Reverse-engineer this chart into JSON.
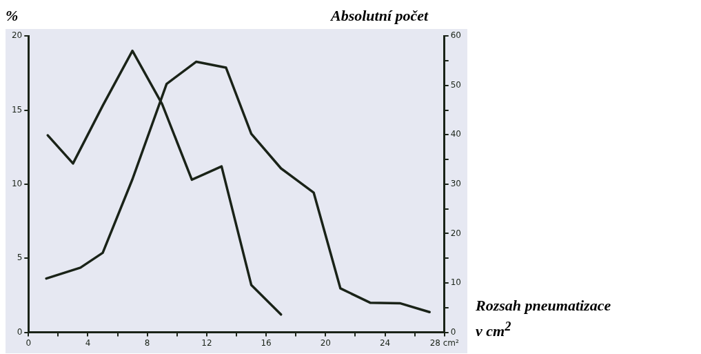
{
  "chart_data": {
    "type": "line",
    "ylabel": "%",
    "y2label": "Absolutní počet",
    "xlabel": "Rozsah pneumatizace v cm$^{2}$",
    "xlim": [
      0,
      28
    ],
    "xticks": [
      0,
      {
        "value": 2,
        "label": null
      },
      4,
      {
        "value": 6,
        "label": null
      },
      8,
      {
        "value": 10,
        "label": null
      },
      12,
      {
        "value": 14,
        "label": null
      },
      16,
      {
        "value": 18,
        "label": null
      },
      20,
      {
        "value": 22,
        "label": null
      },
      24,
      {
        "value": 26,
        "label": null
      },
      {
        "value": 28,
        "label": "28 cm²"
      }
    ],
    "ylim": [
      0,
      20
    ],
    "yticks": [
      0,
      5,
      10,
      15,
      20
    ],
    "y2lim": [
      0,
      60
    ],
    "y2ticks": [
      0,
      {
        "value": 5,
        "label": null
      },
      10,
      {
        "value": 15,
        "label": null
      },
      20,
      {
        "value": 25,
        "label": null
      },
      30,
      {
        "value": 35,
        "label": null
      },
      40,
      {
        "value": 45,
        "label": null
      },
      50,
      {
        "value": 55,
        "label": null
      },
      60
    ],
    "grid": false,
    "legend": false,
    "marker": "none",
    "line_style": "solid",
    "series": [
      {
        "color": "#1a2318",
        "x": [
          1.3,
          3,
          5,
          7,
          9,
          11,
          13,
          15,
          17
        ],
        "values": [
          13.3,
          11.4,
          15.3,
          19,
          15.4,
          10.3,
          11.2,
          3.2,
          1.2
        ]
      },
      {
        "color": "#1a2318",
        "axis": "y2",
        "x": [
          1.2,
          3.5,
          5,
          7,
          9.3,
          11.3,
          13.3,
          15,
          17,
          19.2,
          21,
          23,
          25,
          27
        ],
        "values": [
          10.9,
          13.1,
          16.1,
          31,
          50.3,
          54.8,
          53.6,
          40.2,
          33.2,
          28.3,
          8.9,
          6,
          5.9,
          4.1
        ]
      }
    ]
  }
}
